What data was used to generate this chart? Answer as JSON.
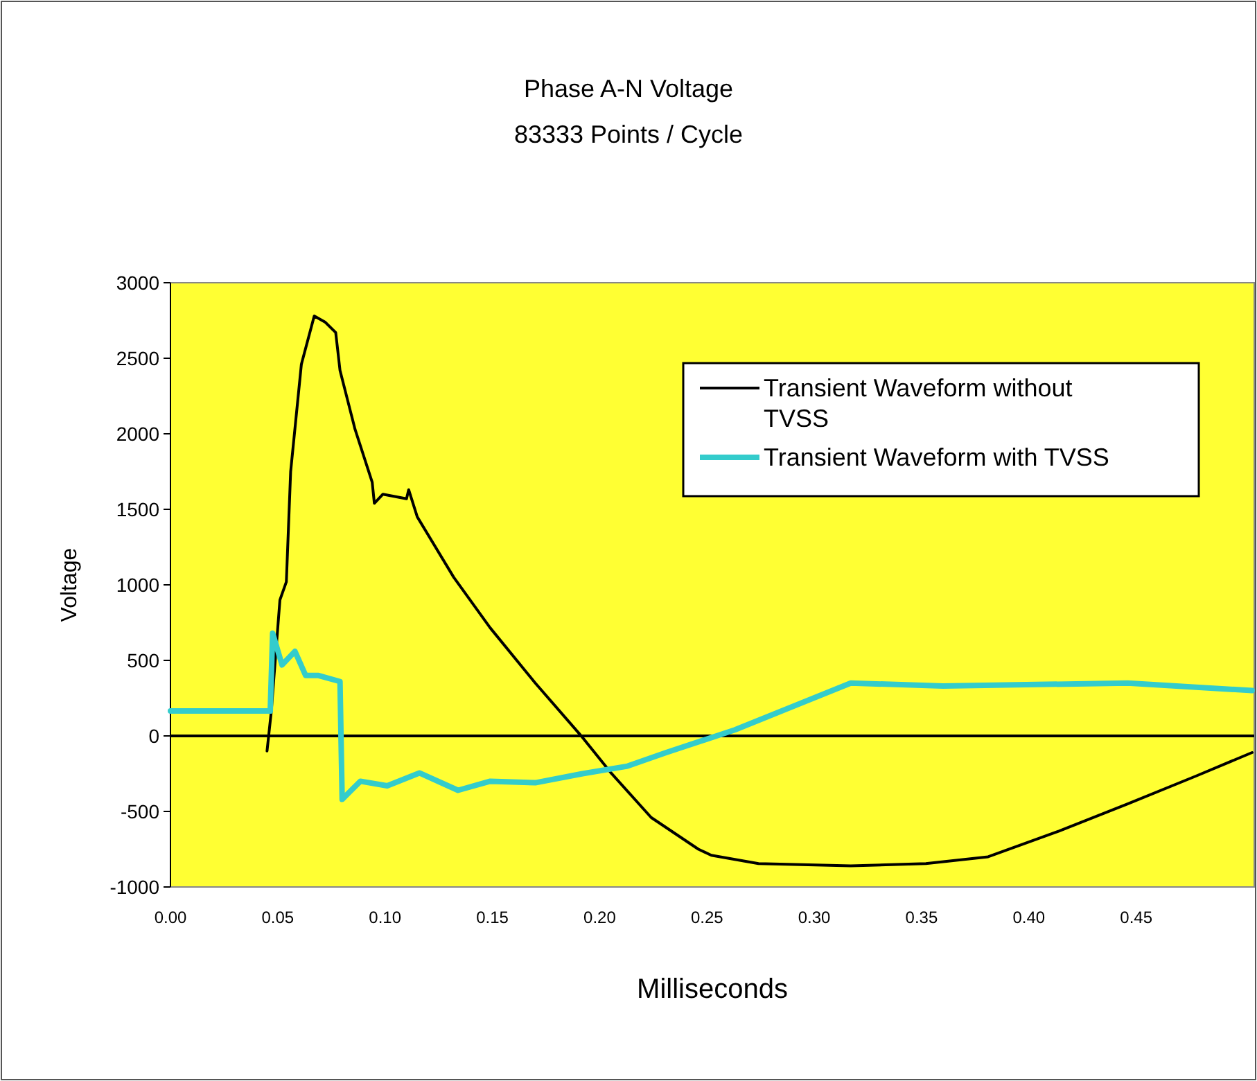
{
  "chart_data": {
    "type": "line",
    "title": "Phase A-N Voltage",
    "subtitle": "83333 Points / Cycle",
    "xlabel": "Milliseconds",
    "ylabel": "Voltage",
    "xlim": [
      0,
      0.505
    ],
    "xticks": [
      {
        "value": 0,
        "label": "0.00"
      },
      {
        "value": 0.05,
        "label": "0.05"
      },
      {
        "value": 0.1,
        "label": "0.10"
      },
      {
        "value": 0.15,
        "label": "0.15"
      },
      {
        "value": 0.2,
        "label": "0.20"
      },
      {
        "value": 0.25,
        "label": "0.25"
      },
      {
        "value": 0.3,
        "label": "0.30"
      },
      {
        "value": 0.35,
        "label": "0.35"
      },
      {
        "value": 0.4,
        "label": "0.40"
      },
      {
        "value": 0.45,
        "label": "0.45"
      }
    ],
    "ylim": [
      -1000,
      3000
    ],
    "yticks": [
      -1000,
      -500,
      0,
      500,
      1000,
      1500,
      2000,
      2500,
      3000
    ],
    "grid": false,
    "legend": "top right",
    "marker": "none",
    "line_style": "solid",
    "ref_lines": [
      {
        "axis": "y",
        "value": 0,
        "color": "#000000"
      }
    ],
    "series": [
      {
        "name": "Transient Waveform without TVSS",
        "color": "#000000",
        "x": [
          0.045,
          0.047,
          0.051,
          0.054,
          0.056,
          0.061,
          0.067,
          0.072,
          0.077,
          0.079,
          0.086,
          0.094,
          0.095,
          0.099,
          0.11,
          0.111,
          0.115,
          0.132,
          0.149,
          0.17,
          0.192,
          0.205,
          0.224,
          0.246,
          0.252,
          0.274,
          0.317,
          0.352,
          0.381,
          0.414,
          0.446,
          0.478,
          0.504
        ],
        "values": [
          -100,
          165,
          900,
          1020,
          1750,
          2460,
          2780,
          2740,
          2670,
          2420,
          2030,
          1680,
          1540,
          1600,
          1570,
          1630,
          1450,
          1050,
          715,
          350,
          -10,
          -240,
          -540,
          -750,
          -790,
          -845,
          -860,
          -845,
          -800,
          -630,
          -450,
          -265,
          -110
        ]
      },
      {
        "name": "Transient Waveform with TVSS",
        "color": "#33cccc",
        "x": [
          0,
          0.0465,
          0.0476,
          0.052,
          0.058,
          0.063,
          0.069,
          0.079,
          0.08,
          0.0885,
          0.101,
          0.116,
          0.134,
          0.149,
          0.17,
          0.192,
          0.213,
          0.231,
          0.263,
          0.317,
          0.36,
          0.446,
          0.504
        ],
        "values": [
          165,
          165,
          680,
          470,
          560,
          400,
          400,
          360,
          -420,
          -300,
          -330,
          -245,
          -360,
          -300,
          -310,
          -250,
          -200,
          -110,
          40,
          350,
          330,
          350,
          300
        ]
      }
    ]
  }
}
